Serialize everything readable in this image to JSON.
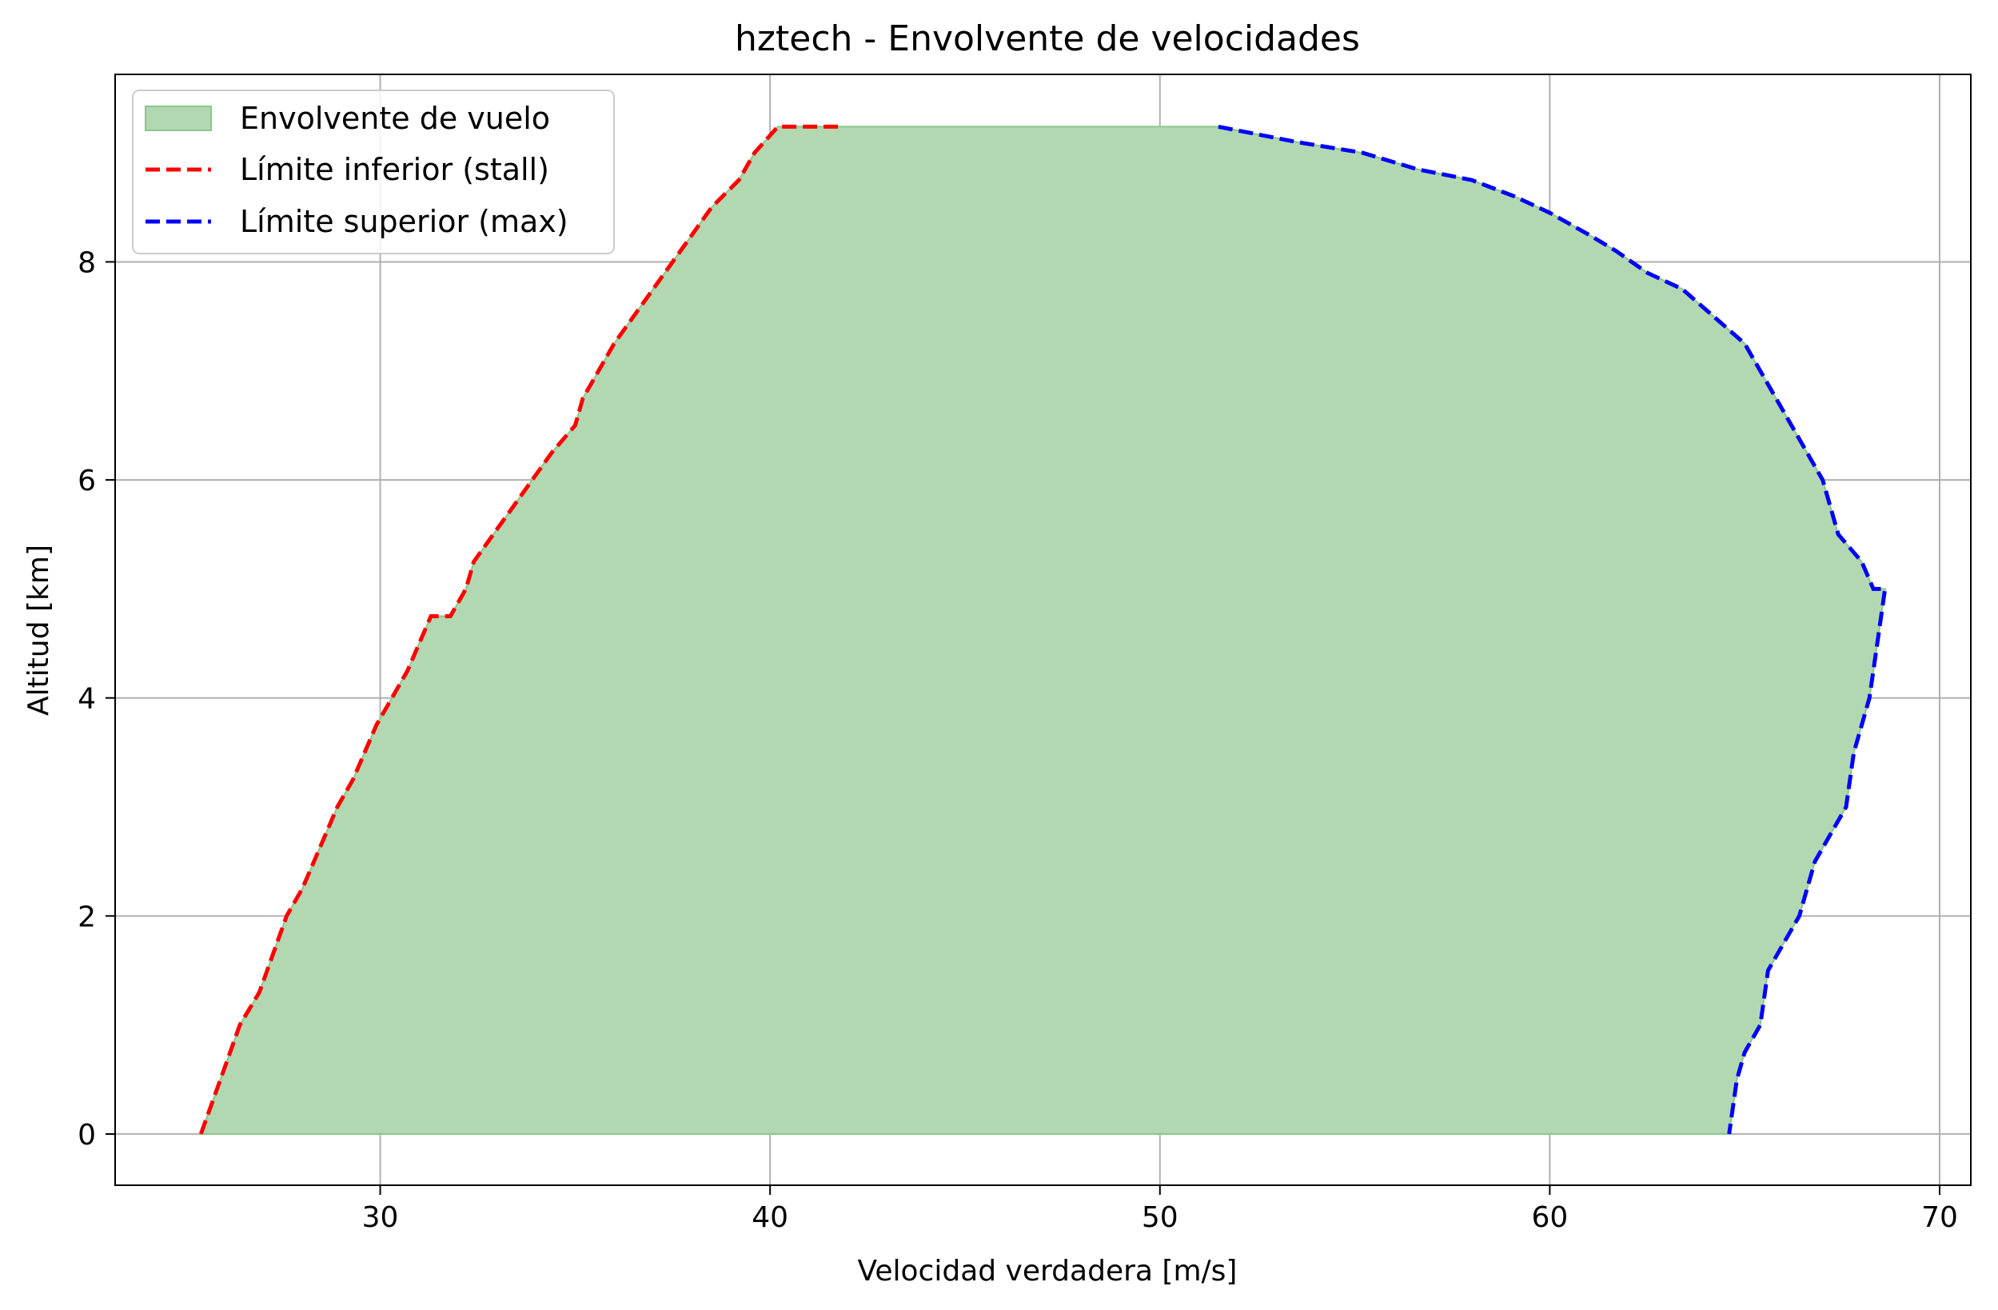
{
  "chart_data": {
    "type": "area",
    "title": "hztech - Envolvente de velocidades",
    "xlabel": "Velocidad verdadera [m/s]",
    "ylabel": "Altitud [km]",
    "xlim": [
      23.2,
      70.8
    ],
    "ylim": [
      -0.47,
      9.72
    ],
    "xticks": [
      30,
      40,
      50,
      60,
      70
    ],
    "yticks": [
      0,
      2,
      4,
      6,
      8
    ],
    "grid": true,
    "legend_position": "top-left",
    "series": [
      {
        "name": "Envolvente de vuelo",
        "kind": "fill",
        "color": "#b2d8b2",
        "edge_color": "#8cc68c"
      },
      {
        "name": "Límite inferior (stall)",
        "kind": "dashed-line",
        "color": "#ff0000",
        "x": [
          25.4,
          25.9,
          26.4,
          26.9,
          27.3,
          27.6,
          28.0,
          28.3,
          28.6,
          28.9,
          29.3,
          29.6,
          29.9,
          30.3,
          30.7,
          31.0,
          31.3,
          31.8,
          32.2,
          32.4,
          32.9,
          33.4,
          33.9,
          34.4,
          35.0,
          35.2,
          35.6,
          36.0,
          36.5,
          37.0,
          37.5,
          38.0,
          38.5,
          39.2,
          39.6,
          40.2,
          40.9,
          41.8
        ],
        "y": [
          0.0,
          0.5,
          1.0,
          1.3,
          1.7,
          2.0,
          2.25,
          2.5,
          2.75,
          3.0,
          3.25,
          3.5,
          3.75,
          4.0,
          4.25,
          4.5,
          4.75,
          4.75,
          5.0,
          5.25,
          5.5,
          5.75,
          6.0,
          6.25,
          6.5,
          6.75,
          7.0,
          7.25,
          7.5,
          7.75,
          8.0,
          8.25,
          8.5,
          8.75,
          9.0,
          9.24,
          9.24,
          9.24
        ]
      },
      {
        "name": "Límite superior (max)",
        "kind": "dashed-line",
        "color": "#0000ff",
        "x": [
          51.5,
          53.5,
          55.2,
          56.6,
          58.0,
          59.1,
          60.0,
          61.0,
          61.7,
          62.5,
          63.4,
          64.2,
          65.0,
          65.4,
          65.8,
          66.2,
          66.6,
          67.0,
          67.2,
          67.4,
          68.0,
          68.3,
          68.6,
          68.4,
          68.2,
          68.0,
          67.8,
          67.6,
          67.2,
          66.8,
          66.6,
          66.4,
          66.0,
          65.6,
          65.4,
          65.0,
          64.8,
          64.6
        ],
        "y": [
          9.24,
          9.1,
          9.0,
          8.85,
          8.75,
          8.6,
          8.45,
          8.25,
          8.1,
          7.9,
          7.75,
          7.5,
          7.25,
          7.0,
          6.75,
          6.5,
          6.25,
          6.0,
          5.75,
          5.5,
          5.25,
          5.0,
          5.0,
          4.5,
          4.0,
          3.75,
          3.5,
          3.0,
          2.75,
          2.5,
          2.25,
          2.0,
          1.75,
          1.5,
          1.0,
          0.75,
          0.5,
          0.0
        ]
      }
    ]
  }
}
